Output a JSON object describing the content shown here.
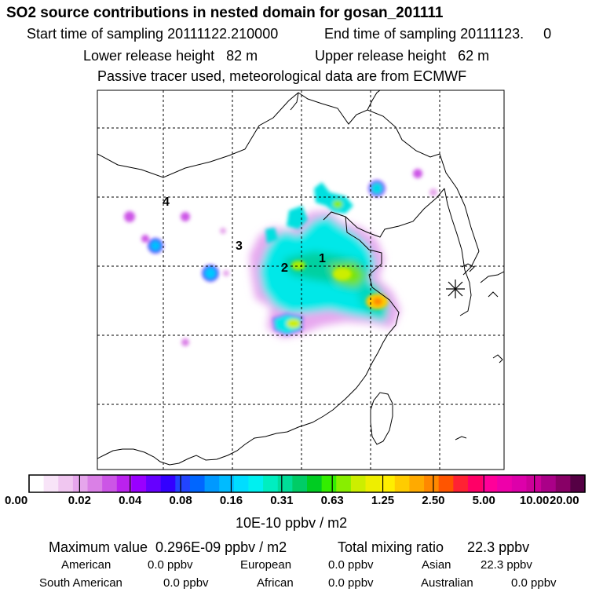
{
  "header": {
    "title": "SO2 source contributions in nested domain for gosan_201111",
    "start": "Start time of sampling 20111122.210000",
    "end": "End time of sampling 20111123.     0",
    "lower": "Lower release height   82 m",
    "upper": "Upper release height   62 m",
    "passive": "Passive tracer used, meteorological data are from ECMWF"
  },
  "map": {
    "region_labels": [
      "1",
      "2",
      "3",
      "4"
    ],
    "receptor_marker": "asterisk-receptor"
  },
  "colorbar": {
    "ticks": [
      "0.00",
      "0.02",
      "0.04",
      "0.08",
      "0.16",
      "0.31",
      "0.63",
      "1.25",
      "2.50",
      "5.00",
      "10.00",
      "20.00"
    ],
    "unit": "10E-10 ppbv / m2",
    "colors": [
      "#ffffff",
      "#f8e4f8",
      "#f0c6f0",
      "#e6a6ec",
      "#da80e6",
      "#cc55e6",
      "#bb22ee",
      "#9900ff",
      "#6600ff",
      "#3300ff",
      "#2244ff",
      "#0066ff",
      "#0099ff",
      "#00bbff",
      "#00ddff",
      "#00f0f0",
      "#00eec0",
      "#00dd99",
      "#00cc66",
      "#00cc22",
      "#33ee00",
      "#88ee00",
      "#ccee00",
      "#eeee00",
      "#ffee00",
      "#ffcc00",
      "#ffaa00",
      "#ff8800",
      "#ff5500",
      "#ff2233",
      "#ff0066",
      "#ff0099",
      "#ee00aa",
      "#dd00aa",
      "#cc0099",
      "#aa0088",
      "#880066",
      "#550044"
    ]
  },
  "footer": {
    "max": "Maximum value  0.296E-09 ppbv / m2",
    "total": "Total mixing ratio      22.3 ppbv",
    "american_label": "American",
    "american_value": "0.0 ppbv",
    "european_label": "European",
    "european_value": "0.0 ppbv",
    "asian_label": "Asian",
    "asian_value": "22.3 ppbv",
    "south_american_label": "South American",
    "south_american_value": "0.0 ppbv",
    "african_label": "African",
    "african_value": "0.0 ppbv",
    "australian_label": "Australian",
    "australian_value": "0.0 ppbv"
  }
}
